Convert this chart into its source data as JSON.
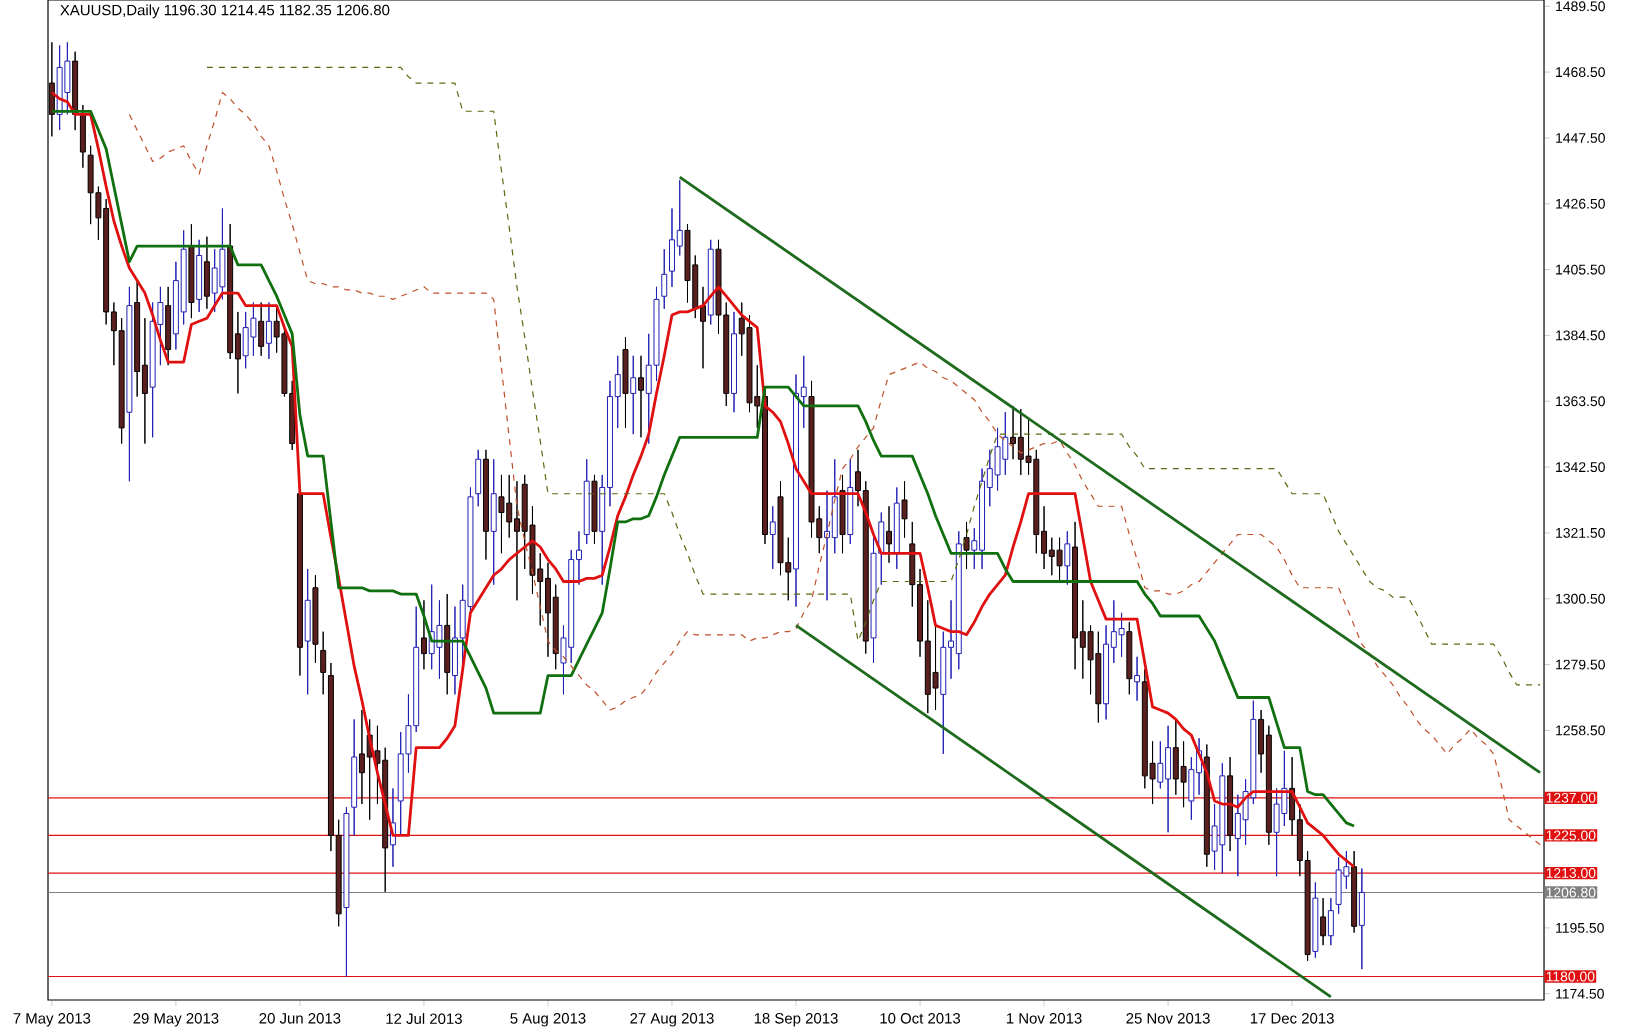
{
  "chart_data": {
    "type": "candlestick",
    "title": "XAUUSD,Daily  1196.30 1214.45 1182.35 1206.80",
    "categories": [
      "7 May 2013",
      null,
      null,
      null,
      null,
      null,
      null,
      null,
      null,
      null,
      null,
      null,
      null,
      null,
      null,
      null,
      "29 May 2013",
      null,
      null,
      null,
      null,
      null,
      null,
      null,
      null,
      null,
      null,
      null,
      null,
      null,
      null,
      null,
      "20 Jun 2013",
      null,
      null,
      null,
      null,
      null,
      null,
      null,
      null,
      null,
      null,
      null,
      null,
      null,
      null,
      null,
      "12 Jul 2013",
      null,
      null,
      null,
      null,
      null,
      null,
      null,
      null,
      null,
      null,
      null,
      null,
      null,
      null,
      null,
      "5 Aug 2013",
      null,
      null,
      null,
      null,
      null,
      null,
      null,
      null,
      null,
      null,
      null,
      null,
      null,
      null,
      null,
      "27 Aug 2013",
      null,
      null,
      null,
      null,
      null,
      null,
      null,
      null,
      null,
      null,
      null,
      null,
      null,
      null,
      null,
      "18 Sep 2013",
      null,
      null,
      null,
      null,
      null,
      null,
      null,
      null,
      null,
      null,
      null,
      null,
      null,
      null,
      null,
      "10 Oct 2013",
      null,
      null,
      null,
      null,
      null,
      null,
      null,
      null,
      null,
      null,
      null,
      null,
      null,
      null,
      null,
      "1 Nov 2013",
      null,
      null,
      null,
      null,
      null,
      null,
      null,
      null,
      null,
      null,
      null,
      null,
      null,
      null,
      null,
      "25 Nov 2013",
      null,
      null,
      null,
      null,
      null,
      null,
      null,
      null,
      null,
      null,
      null,
      null,
      null,
      null,
      null,
      "17 Dec 2013",
      null,
      null,
      null,
      null,
      null,
      null,
      null,
      null,
      null,
      null,
      null,
      null,
      null,
      null,
      null,
      null,
      null,
      null,
      null,
      null,
      null,
      null,
      null,
      null,
      null,
      null,
      null,
      null,
      null,
      null,
      null,
      null
    ],
    "ylim": [
      1172.5,
      1491.5
    ],
    "yticks": [
      {
        "value": 1174.5,
        "label": "1174.50"
      },
      {
        "value": 1195.5,
        "label": "1195.50"
      },
      {
        "value": 1237.5,
        "label": null
      },
      {
        "value": 1258.5,
        "label": "1258.50"
      },
      {
        "value": 1279.5,
        "label": "1279.50"
      },
      {
        "value": 1300.5,
        "label": "1300.50"
      },
      {
        "value": 1321.5,
        "label": "1321.50"
      },
      {
        "value": 1342.5,
        "label": "1342.50"
      },
      {
        "value": 1363.5,
        "label": "1363.50"
      },
      {
        "value": 1384.5,
        "label": "1384.50"
      },
      {
        "value": 1405.5,
        "label": "1405.50"
      },
      {
        "value": 1426.5,
        "label": "1426.50"
      },
      {
        "value": 1447.5,
        "label": "1447.50"
      },
      {
        "value": 1468.5,
        "label": "1468.50"
      },
      {
        "value": 1489.5,
        "label": "1489.50"
      }
    ],
    "colors": [
      "#5a1f1f",
      "#1f1fb4",
      "#1f1fb4",
      "#5a1f1f",
      "#5a1f1f",
      "#5a1f1f",
      "#5a1f1f",
      "#5a1f1f",
      "#5a1f1f",
      "#5a1f1f",
      "#1f1fb4",
      "#5a1f1f",
      "#5a1f1f",
      "#1f1fb4",
      "#1f1fb4",
      "#5a1f1f",
      "#1f1fb4",
      "#1f1fb4",
      "#5a1f1f",
      "#1f1fb4",
      "#5a1f1f",
      "#1f1fb4",
      "#1f1fb4",
      "#5a1f1f",
      "#5a1f1f",
      "#1f1fb4",
      "#1f1fb4",
      "#5a1f1f",
      "#1f1fb4",
      "#5a1f1f",
      "#5a1f1f",
      "#5a1f1f",
      "#5a1f1f",
      "#1f1fb4",
      "#5a1f1f",
      "#5a1f1f",
      "#5a1f1f",
      "#5a1f1f",
      "#1f1fb4",
      "#1f1fb4",
      "#5a1f1f",
      "#5a1f1f",
      "#5a1f1f",
      "#5a1f1f",
      "#1f1fb4",
      "#1f1fb4",
      "#1f1fb4",
      "#1f1fb4",
      "#5a1f1f",
      "#1f1fb4",
      "#1f1fb4",
      "#5a1f1f",
      "#1f1fb4",
      "#1f1fb4",
      "#1f1fb4",
      "#1f1fb4",
      "#5a1f1f",
      "#1f1fb4",
      "#5a1f1f",
      "#5a1f1f",
      "#5a1f1f",
      "#5a1f1f",
      "#5a1f1f",
      "#5a1f1f",
      "#5a1f1f",
      "#5a1f1f",
      "#1f1fb4",
      "#1f1fb4",
      "#1f1fb4",
      "#1f1fb4",
      "#5a1f1f",
      "#1f1fb4",
      "#1f1fb4",
      "#1f1fb4",
      "#5a1f1f",
      "#1f1fb4",
      "#5a1f1f",
      "#1f1fb4",
      "#1f1fb4",
      "#1f1fb4",
      "#1f1fb4",
      "#1f1fb4",
      "#5a1f1f",
      "#5a1f1f",
      "#5a1f1f",
      "#1f1fb4",
      "#5a1f1f",
      "#5a1f1f",
      "#1f1fb4",
      "#5a1f1f",
      "#5a1f1f",
      "#5a1f1f",
      "#5a1f1f",
      "#1f1fb4",
      "#5a1f1f",
      "#5a1f1f",
      "#1f1fb4",
      "#1f1fb4",
      "#5a1f1f",
      "#5a1f1f",
      "#1f1fb4",
      "#1f1fb4",
      "#5a1f1f",
      "#1f1fb4",
      "#5a1f1f",
      "#5a1f1f",
      "#1f1fb4",
      "#1f1fb4",
      "#5a1f1f",
      "#1f1fb4",
      "#5a1f1f",
      "#5a1f1f",
      "#5a1f1f",
      "#5a1f1f",
      "#5a1f1f",
      "#1f1fb4",
      "#1f1fb4",
      "#1f1fb4",
      "#5a1f1f",
      "#1f1fb4",
      "#1f1fb4",
      "#1f1fb4",
      "#1f1fb4",
      "#1f1fb4",
      "#5a1f1f",
      "#5a1f1f",
      "#5a1f1f",
      "#5a1f1f",
      "#5a1f1f",
      "#5a1f1f",
      "#5a1f1f",
      "#1f1fb4",
      "#5a1f1f",
      "#5a1f1f",
      "#5a1f1f",
      "#5a1f1f",
      "#1f1fb4",
      "#1f1fb4",
      "#1f1fb4",
      "#5a1f1f",
      "#1f1fb4",
      "#5a1f1f",
      "#5a1f1f",
      "#1f1fb4",
      "#1f1fb4",
      "#5a1f1f",
      "#5a1f1f",
      "#1f1fb4",
      "#1f1fb4",
      "#5a1f1f",
      "#1f1fb4",
      "#1f1fb4",
      "#5a1f1f",
      "#1f1fb4",
      "#1f1fb4",
      "#1f1fb4",
      "#5a1f1f",
      "#5a1f1f",
      "#1f1fb4",
      "#1f1fb4",
      "#5a1f1f",
      "#5a1f1f",
      "#5a1f1f",
      "#1f1fb4",
      "#5a1f1f",
      "#1f1fb4",
      "#1f1fb4",
      "#1f1fb4",
      "#5a1f1f",
      "#1f1fb4",
      null,
      null,
      null,
      null,
      null,
      null,
      null,
      null,
      null,
      null,
      null,
      null,
      null,
      null,
      null,
      null,
      null,
      null,
      null,
      null,
      null,
      null,
      null
    ],
    "ohlc": [
      [
        1465,
        1478,
        1448,
        1455
      ],
      [
        1455,
        1477,
        1450,
        1470
      ],
      [
        1462,
        1478,
        1455,
        1472
      ],
      [
        1472,
        1475,
        1450,
        1455
      ],
      [
        1455,
        1458,
        1438,
        1443
      ],
      [
        1442,
        1445,
        1420,
        1430
      ],
      [
        1430,
        1432,
        1415,
        1422
      ],
      [
        1425,
        1428,
        1388,
        1392
      ],
      [
        1392,
        1395,
        1375,
        1386
      ],
      [
        1386,
        1390,
        1350,
        1355
      ],
      [
        1360,
        1400,
        1338,
        1394
      ],
      [
        1395,
        1402,
        1365,
        1373
      ],
      [
        1375,
        1390,
        1350,
        1366
      ],
      [
        1368,
        1395,
        1352,
        1389
      ],
      [
        1388,
        1400,
        1375,
        1395
      ],
      [
        1394,
        1400,
        1375,
        1380
      ],
      [
        1385,
        1408,
        1380,
        1402
      ],
      [
        1392,
        1418,
        1388,
        1412
      ],
      [
        1413,
        1420,
        1390,
        1395
      ],
      [
        1396,
        1415,
        1392,
        1410
      ],
      [
        1408,
        1416,
        1393,
        1397
      ],
      [
        1398,
        1412,
        1392,
        1406
      ],
      [
        1400,
        1425,
        1396,
        1412
      ],
      [
        1413,
        1420,
        1377,
        1379
      ],
      [
        1385,
        1392,
        1366,
        1377
      ],
      [
        1378,
        1392,
        1374,
        1387
      ],
      [
        1384,
        1395,
        1378,
        1390
      ],
      [
        1389,
        1395,
        1378,
        1381
      ],
      [
        1382,
        1395,
        1377,
        1389
      ],
      [
        1389,
        1394,
        1379,
        1384
      ],
      [
        1385,
        1388,
        1365,
        1366
      ],
      [
        1366,
        1370,
        1348,
        1350
      ],
      [
        1334,
        1336,
        1276,
        1285
      ],
      [
        1287,
        1310,
        1270,
        1300
      ],
      [
        1304,
        1308,
        1280,
        1286
      ],
      [
        1284,
        1290,
        1270,
        1277
      ],
      [
        1276,
        1280,
        1220,
        1225
      ],
      [
        1225,
        1230,
        1196,
        1200
      ],
      [
        1202,
        1234,
        1180,
        1232
      ],
      [
        1234,
        1262,
        1225,
        1250
      ],
      [
        1251,
        1265,
        1235,
        1245
      ],
      [
        1257,
        1262,
        1230,
        1250
      ],
      [
        1252,
        1260,
        1235,
        1248
      ],
      [
        1249,
        1253,
        1207,
        1221
      ],
      [
        1222,
        1240,
        1215,
        1229
      ],
      [
        1236,
        1258,
        1225,
        1251
      ],
      [
        1251,
        1270,
        1245,
        1260
      ],
      [
        1260,
        1298,
        1258,
        1285
      ],
      [
        1288,
        1300,
        1278,
        1283
      ],
      [
        1283,
        1305,
        1278,
        1290
      ],
      [
        1285,
        1300,
        1275,
        1292
      ],
      [
        1292,
        1302,
        1270,
        1277
      ],
      [
        1276,
        1298,
        1270,
        1288
      ],
      [
        1288,
        1305,
        1278,
        1300
      ],
      [
        1298,
        1336,
        1295,
        1333
      ],
      [
        1334,
        1348,
        1330,
        1345
      ],
      [
        1345,
        1348,
        1313,
        1322
      ],
      [
        1322,
        1345,
        1305,
        1334
      ],
      [
        1333,
        1340,
        1315,
        1328
      ],
      [
        1331,
        1340,
        1320,
        1325
      ],
      [
        1326,
        1338,
        1300,
        1322
      ],
      [
        1337,
        1340,
        1310,
        1322
      ],
      [
        1324,
        1330,
        1302,
        1308
      ],
      [
        1310,
        1315,
        1292,
        1306
      ],
      [
        1307,
        1312,
        1282,
        1296
      ],
      [
        1301,
        1305,
        1278,
        1283
      ],
      [
        1280,
        1292,
        1270,
        1288
      ],
      [
        1285,
        1316,
        1280,
        1313
      ],
      [
        1313,
        1322,
        1305,
        1316
      ],
      [
        1321,
        1345,
        1318,
        1338
      ],
      [
        1338,
        1340,
        1318,
        1322
      ],
      [
        1322,
        1340,
        1305,
        1336
      ],
      [
        1336,
        1370,
        1330,
        1365
      ],
      [
        1365,
        1378,
        1355,
        1372
      ],
      [
        1380,
        1384,
        1355,
        1366
      ],
      [
        1366,
        1378,
        1353,
        1371
      ],
      [
        1371,
        1378,
        1352,
        1367
      ],
      [
        1366,
        1385,
        1350,
        1375
      ],
      [
        1375,
        1400,
        1370,
        1396
      ],
      [
        1397,
        1412,
        1393,
        1404
      ],
      [
        1405,
        1425,
        1400,
        1415
      ],
      [
        1413,
        1434,
        1410,
        1418
      ],
      [
        1418,
        1420,
        1395,
        1402
      ],
      [
        1407,
        1410,
        1390,
        1393
      ],
      [
        1394,
        1400,
        1374,
        1389
      ],
      [
        1391,
        1415,
        1388,
        1412
      ],
      [
        1412,
        1415,
        1385,
        1391
      ],
      [
        1391,
        1395,
        1362,
        1366
      ],
      [
        1366,
        1392,
        1360,
        1385
      ],
      [
        1390,
        1395,
        1378,
        1385
      ],
      [
        1387,
        1391,
        1360,
        1363
      ],
      [
        1365,
        1375,
        1355,
        1362
      ],
      [
        1365,
        1368,
        1318,
        1321
      ],
      [
        1321,
        1330,
        1310,
        1325
      ],
      [
        1333,
        1338,
        1308,
        1312
      ],
      [
        1312,
        1320,
        1300,
        1309
      ],
      [
        1310,
        1372,
        1298,
        1366
      ],
      [
        1365,
        1378,
        1355,
        1368
      ],
      [
        1365,
        1370,
        1320,
        1325
      ],
      [
        1326,
        1330,
        1315,
        1320
      ],
      [
        1320,
        1335,
        1300,
        1322
      ],
      [
        1320,
        1345,
        1315,
        1333
      ],
      [
        1335,
        1340,
        1315,
        1321
      ],
      [
        1321,
        1345,
        1318,
        1336
      ],
      [
        1341,
        1348,
        1330,
        1335
      ],
      [
        1335,
        1338,
        1283,
        1287
      ],
      [
        1288,
        1320,
        1280,
        1315
      ],
      [
        1315,
        1328,
        1305,
        1325
      ],
      [
        1322,
        1330,
        1312,
        1318
      ],
      [
        1315,
        1336,
        1310,
        1331
      ],
      [
        1332,
        1338,
        1320,
        1326
      ],
      [
        1318,
        1325,
        1298,
        1305
      ],
      [
        1305,
        1310,
        1282,
        1287
      ],
      [
        1287,
        1300,
        1264,
        1270
      ],
      [
        1277,
        1292,
        1265,
        1272
      ],
      [
        1270,
        1290,
        1251,
        1285
      ],
      [
        1285,
        1300,
        1275,
        1287
      ],
      [
        1283,
        1322,
        1278,
        1318
      ],
      [
        1320,
        1325,
        1310,
        1316
      ],
      [
        1316,
        1323,
        1310,
        1319
      ],
      [
        1316,
        1342,
        1310,
        1338
      ],
      [
        1336,
        1348,
        1330,
        1342
      ],
      [
        1340,
        1355,
        1335,
        1349
      ],
      [
        1345,
        1360,
        1340,
        1352
      ],
      [
        1352,
        1362,
        1345,
        1350
      ],
      [
        1352,
        1361,
        1340,
        1345
      ],
      [
        1346,
        1358,
        1340,
        1344
      ],
      [
        1345,
        1348,
        1315,
        1321
      ],
      [
        1322,
        1330,
        1310,
        1315
      ],
      [
        1316,
        1320,
        1308,
        1314
      ],
      [
        1316,
        1320,
        1306,
        1311
      ],
      [
        1311,
        1322,
        1305,
        1318
      ],
      [
        1317,
        1325,
        1278,
        1288
      ],
      [
        1290,
        1300,
        1275,
        1285
      ],
      [
        1290,
        1292,
        1270,
        1281
      ],
      [
        1283,
        1290,
        1261,
        1267
      ],
      [
        1267,
        1292,
        1262,
        1286
      ],
      [
        1285,
        1300,
        1280,
        1290
      ],
      [
        1289,
        1296,
        1282,
        1291
      ],
      [
        1290,
        1293,
        1270,
        1275
      ],
      [
        1274,
        1282,
        1268,
        1276
      ],
      [
        1274,
        1278,
        1240,
        1244
      ],
      [
        1248,
        1255,
        1235,
        1243
      ],
      [
        1242,
        1255,
        1240,
        1248
      ],
      [
        1243,
        1260,
        1226,
        1253
      ],
      [
        1253,
        1262,
        1238,
        1243
      ],
      [
        1247,
        1255,
        1234,
        1242
      ],
      [
        1236,
        1250,
        1230,
        1246
      ],
      [
        1245,
        1256,
        1238,
        1252
      ],
      [
        1250,
        1254,
        1215,
        1219
      ],
      [
        1220,
        1235,
        1214,
        1228
      ],
      [
        1222,
        1248,
        1213,
        1244
      ],
      [
        1244,
        1250,
        1220,
        1225
      ],
      [
        1224,
        1238,
        1212,
        1232
      ],
      [
        1230,
        1243,
        1222,
        1239
      ],
      [
        1237,
        1268,
        1235,
        1262
      ],
      [
        1262,
        1265,
        1245,
        1251
      ],
      [
        1257,
        1260,
        1222,
        1226
      ],
      [
        1226,
        1240,
        1212,
        1235
      ],
      [
        1232,
        1252,
        1228,
        1240
      ],
      [
        1240,
        1250,
        1225,
        1230
      ],
      [
        1230,
        1235,
        1212,
        1217
      ],
      [
        1217,
        1220,
        1185,
        1187
      ],
      [
        1188,
        1210,
        1186,
        1205
      ],
      [
        1199,
        1205,
        1190,
        1193
      ],
      [
        1193,
        1205,
        1190,
        1201
      ],
      [
        1203,
        1218,
        1200,
        1214
      ],
      [
        1212,
        1220,
        1208,
        1215
      ],
      [
        1215,
        1220,
        1194,
        1196
      ],
      [
        1196.3,
        1214.45,
        1182.35,
        1206.8
      ],
      null,
      null,
      null,
      null,
      null,
      null,
      null,
      null,
      null,
      null,
      null,
      null,
      null,
      null,
      null,
      null,
      null,
      null,
      null,
      null,
      null,
      null,
      null
    ],
    "series": [
      {
        "type": "line",
        "color": "#e01010",
        "values": [
          1462,
          1460,
          1459,
          1455,
          1455,
          1455,
          1444,
          1432,
          1421,
          1413,
          1406,
          1402,
          1398,
          1391,
          1383,
          1376,
          1376,
          1376,
          1388,
          1389,
          1390,
          1394,
          1398,
          1398,
          1398,
          1394,
          1394,
          1394,
          1394,
          1394,
          1387,
          1381,
          1334,
          1334,
          1334,
          1334,
          1320,
          1307,
          1293,
          1279,
          1268,
          1256,
          1245,
          1235,
          1225,
          1225,
          1225,
          1253,
          1253,
          1253,
          1253,
          1256,
          1260,
          1278,
          1296,
          1300,
          1304,
          1308,
          1310,
          1313,
          1315,
          1317,
          1319,
          1317,
          1313,
          1310,
          1306,
          1306,
          1306,
          1307,
          1307,
          1308,
          1317,
          1327,
          1333,
          1340,
          1346,
          1353,
          1366,
          1378,
          1391,
          1392,
          1392,
          1393,
          1394,
          1397,
          1400,
          1397,
          1394,
          1391,
          1389,
          1387,
          1362,
          1360,
          1357,
          1350,
          1342,
          1338,
          1334,
          1334,
          1334,
          1334,
          1334,
          1334,
          1334,
          1328,
          1321,
          1315,
          1315,
          1315,
          1315,
          1315,
          1315,
          1304,
          1292,
          1291,
          1290,
          1290,
          1289,
          1293,
          1298,
          1302,
          1305,
          1308,
          1317,
          1325,
          1334,
          1334,
          1334,
          1334,
          1334,
          1334,
          1334,
          1320,
          1306,
          1300,
          1294,
          1294,
          1294,
          1294,
          1294,
          1280,
          1266,
          1265,
          1264,
          1262,
          1259,
          1257,
          1251,
          1245,
          1236,
          1235,
          1235,
          1234,
          1237,
          1239,
          1239,
          1239,
          1239,
          1239,
          1239,
          1234,
          1229,
          1227,
          1225,
          1222,
          1219,
          1217,
          1215,
          null,
          null,
          null,
          null,
          null,
          null,
          null,
          null,
          null,
          null,
          null,
          null,
          null,
          null,
          null,
          null,
          null,
          null,
          null,
          null,
          null,
          null,
          null,
          null
        ]
      },
      {
        "type": "line",
        "color": "#107010",
        "values": [
          1456,
          1456,
          1456,
          1456,
          1456,
          1456,
          1450,
          1444,
          1432,
          1420,
          1408,
          1413,
          1413,
          1413,
          1413,
          1413,
          1413,
          1413,
          1413,
          1413,
          1413,
          1413,
          1413,
          1413,
          1407,
          1407,
          1407,
          1407,
          1402,
          1397,
          1391,
          1385,
          1359,
          1346,
          1346,
          1346,
          1325,
          1304,
          1304,
          1304,
          1304,
          1303,
          1303,
          1303,
          1303,
          1302,
          1302,
          1302,
          1295,
          1287,
          1287,
          1287,
          1287,
          1287,
          1282,
          1277,
          1272,
          1264,
          1264,
          1264,
          1264,
          1264,
          1264,
          1264,
          1276,
          1276,
          1276,
          1276,
          1281,
          1286,
          1291,
          1296,
          1310,
          1325,
          1325,
          1326,
          1326,
          1327,
          1333,
          1340,
          1346,
          1352,
          1352,
          1352,
          1352,
          1352,
          1352,
          1352,
          1352,
          1352,
          1352,
          1352,
          1368,
          1368,
          1368,
          1368,
          1365,
          1362,
          1362,
          1362,
          1362,
          1362,
          1362,
          1362,
          1362,
          1357,
          1351,
          1346,
          1346,
          1346,
          1346,
          1346,
          1340,
          1334,
          1327,
          1321,
          1315,
          1315,
          1315,
          1315,
          1315,
          1315,
          1315,
          1310,
          1306,
          1306,
          1306,
          1306,
          1306,
          1306,
          1306,
          1306,
          1306,
          1306,
          1306,
          1306,
          1306,
          1306,
          1306,
          1306,
          1306,
          1302,
          1299,
          1295,
          1295,
          1295,
          1295,
          1295,
          1295,
          1291,
          1287,
          1281,
          1275,
          1269,
          1269,
          1269,
          1269,
          1269,
          1261,
          1253,
          1253,
          1253,
          1239,
          1238,
          1238,
          1235,
          1232,
          1229,
          1228,
          null,
          null,
          null,
          null,
          null,
          null,
          null,
          null,
          null,
          null,
          null,
          null,
          null,
          null,
          null,
          null,
          null,
          null,
          null,
          null,
          null,
          null,
          null,
          null
        ]
      },
      {
        "type": "line",
        "color": "#c0502a",
        "line_style": "dashed",
        "values": [
          null,
          null,
          null,
          null,
          null,
          null,
          null,
          null,
          null,
          null,
          1455,
          1450,
          1445,
          1440,
          1441,
          1443,
          1444,
          1445,
          1440,
          1436,
          1445,
          1453,
          1462,
          1460,
          1457,
          1455,
          1452,
          1448,
          1445,
          1437,
          1428,
          1420,
          1411,
          1402,
          1401,
          1401,
          1400,
          1400,
          1399,
          1399,
          1398,
          1398,
          1397,
          1397,
          1396,
          1397,
          1398,
          1399,
          1400,
          1398,
          1398,
          1398,
          1398,
          1398,
          1398,
          1398,
          1398,
          1396,
          1374,
          1352,
          1330,
          1319,
          1309,
          1298,
          1287,
          1284,
          1282,
          1279,
          1276,
          1273,
          1271,
          1268,
          1265,
          1266,
          1268,
          1269,
          1270,
          1273,
          1277,
          1280,
          1283,
          1287,
          1290,
          1289,
          1289,
          1289,
          1289,
          1289,
          1289,
          1289,
          1287,
          1288,
          1288,
          1289,
          1290,
          1290,
          1291,
          1296,
          1300,
          1311,
          1321,
          1332,
          1342,
          1345,
          1349,
          1352,
          1355,
          1364,
          1372,
          1373,
          1374,
          1375,
          1376,
          1374,
          1373,
          1371,
          1370,
          1368,
          1366,
          1364,
          1360,
          1357,
          1353,
          1351,
          1349,
          1347,
          1348,
          1349,
          1350,
          1350,
          1351,
          1347,
          1343,
          1338,
          1334,
          1330,
          1330,
          1330,
          1330,
          1321,
          1313,
          1304,
          1303,
          1303,
          1302,
          1302,
          1303,
          1305,
          1306,
          1309,
          1312,
          1315,
          1318,
          1321,
          1321,
          1321,
          1321,
          1319,
          1317,
          1313,
          1308,
          1304,
          1304,
          1304,
          1304,
          1304,
          1304,
          1298,
          1292,
          1286,
          1283,
          1279,
          1276,
          1273,
          1269,
          1266,
          1262,
          1259,
          1257,
          1254,
          1251,
          1254,
          1256,
          1259,
          1256,
          1254,
          1251,
          1241,
          1230,
          1228,
          1226,
          1224,
          1222
        ]
      },
      {
        "type": "line",
        "color": "#5a6a10",
        "line_style": "dashed",
        "values": [
          null,
          null,
          null,
          null,
          null,
          null,
          null,
          null,
          null,
          null,
          null,
          null,
          null,
          null,
          null,
          null,
          null,
          null,
          null,
          null,
          1470,
          1470,
          1470,
          1470,
          1470,
          1470,
          1470,
          1470,
          1470,
          1470,
          1470,
          1470,
          1470,
          1470,
          1470,
          1470,
          1470,
          1470,
          1470,
          1470,
          1470,
          1470,
          1470,
          1470,
          1470,
          1470,
          1467,
          1465,
          1465,
          1465,
          1465,
          1465,
          1465,
          1456,
          1456,
          1456,
          1456,
          1456,
          1437,
          1419,
          1400,
          1384,
          1367,
          1351,
          1334,
          1334,
          1334,
          1334,
          1334,
          1334,
          1334,
          1334,
          1334,
          1334,
          1334,
          1334,
          1334,
          1334,
          1334,
          1334,
          1328,
          1321,
          1315,
          1308,
          1302,
          1302,
          1302,
          1302,
          1302,
          1302,
          1302,
          1302,
          1302,
          1302,
          1302,
          1302,
          1302,
          1302,
          1302,
          1302,
          1302,
          1302,
          1302,
          1302,
          1287,
          1293,
          1300,
          1306,
          1306,
          1306,
          1306,
          1306,
          1306,
          1306,
          1306,
          1306,
          1306,
          1313,
          1321,
          1330,
          1338,
          1346,
          1353,
          1353,
          1353,
          1353,
          1353,
          1353,
          1353,
          1353,
          1353,
          1353,
          1353,
          1353,
          1353,
          1353,
          1353,
          1353,
          1353,
          1349,
          1346,
          1342,
          1342,
          1342,
          1342,
          1342,
          1342,
          1342,
          1342,
          1342,
          1342,
          1342,
          1342,
          1342,
          1342,
          1342,
          1342,
          1342,
          1342,
          1338,
          1334,
          1334,
          1334,
          1334,
          1334,
          1328,
          1322,
          1318,
          1314,
          1310,
          1306,
          1304,
          1303,
          1301,
          1301,
          1301,
          1296,
          1291,
          1286,
          1286,
          1286,
          1286,
          1286,
          1286,
          1286,
          1286,
          1286,
          1282,
          1277,
          1273,
          1273,
          1273,
          1273
        ]
      },
      {
        "type": "line",
        "color": "#1e6b1e",
        "values": [
          null,
          null,
          null,
          null,
          null,
          null,
          null,
          null,
          null,
          null,
          null,
          null,
          null,
          null,
          null,
          null,
          null,
          null,
          null,
          null,
          null,
          null,
          null,
          null,
          null,
          null,
          null,
          null,
          null,
          null,
          null,
          null,
          null,
          null,
          null,
          null,
          null,
          null,
          null,
          null,
          null,
          null,
          null,
          null,
          null,
          null,
          null,
          null,
          null,
          null,
          null,
          null,
          null,
          null,
          null,
          null,
          null,
          null,
          null,
          null,
          null,
          null,
          null,
          null,
          null,
          null,
          null,
          null,
          null,
          null,
          null,
          null,
          null,
          null,
          null,
          null,
          null,
          null,
          null,
          null,
          null,
          1435,
          null,
          null,
          null,
          null,
          null,
          null,
          null,
          null,
          null,
          null,
          null,
          null,
          null,
          null,
          null,
          null,
          null,
          null,
          null,
          null,
          null,
          null,
          null,
          null,
          null,
          null,
          null,
          null,
          null,
          null,
          null,
          null,
          null,
          null,
          null,
          null,
          null,
          null,
          null,
          null,
          null,
          null,
          null,
          null,
          null,
          null,
          null,
          null,
          null,
          null,
          null,
          null,
          null,
          null,
          null,
          null,
          null,
          null,
          null,
          null,
          null,
          null,
          null,
          null,
          null,
          null,
          null,
          null,
          null,
          null,
          null,
          null,
          null,
          null,
          null,
          null,
          null,
          null,
          null,
          null,
          null,
          null,
          null,
          null,
          null,
          null,
          null,
          null,
          null,
          null,
          null,
          null,
          null,
          null,
          null,
          null,
          null,
          null,
          null,
          null,
          null,
          null,
          null,
          null,
          null,
          null,
          null,
          null,
          null,
          null,
          1245
        ]
      },
      {
        "type": "line",
        "color": "#1e6b1e",
        "values": [
          null,
          null,
          null,
          null,
          null,
          null,
          null,
          null,
          null,
          null,
          null,
          null,
          null,
          null,
          null,
          null,
          null,
          null,
          null,
          null,
          null,
          null,
          null,
          null,
          null,
          null,
          null,
          null,
          null,
          null,
          null,
          null,
          null,
          null,
          null,
          null,
          null,
          null,
          null,
          null,
          null,
          null,
          null,
          null,
          null,
          null,
          null,
          null,
          null,
          null,
          null,
          null,
          null,
          null,
          null,
          null,
          null,
          null,
          null,
          null,
          null,
          null,
          null,
          null,
          null,
          null,
          null,
          null,
          null,
          null,
          null,
          null,
          null,
          null,
          null,
          null,
          null,
          null,
          null,
          null,
          null,
          null,
          null,
          null,
          null,
          null,
          null,
          null,
          null,
          null,
          null,
          null,
          null,
          null,
          null,
          null,
          1292,
          null,
          null,
          null,
          null,
          null,
          null,
          null,
          null,
          null,
          null,
          null,
          null,
          null,
          null,
          null,
          null,
          null,
          null,
          null,
          null,
          null,
          null,
          null,
          null,
          null,
          null,
          null,
          null,
          null,
          null,
          null,
          null,
          null,
          null,
          null,
          null,
          null,
          null,
          null,
          null,
          null,
          null,
          null,
          null,
          null,
          null,
          null,
          null,
          null,
          null,
          null,
          null,
          null,
          null,
          null,
          null,
          null,
          null,
          null,
          null,
          null,
          null,
          null,
          null,
          null,
          null,
          null,
          null,
          1173.5,
          null,
          null,
          null,
          null,
          null,
          null,
          null,
          null,
          null,
          null,
          null,
          null,
          null,
          null,
          null,
          null,
          null,
          null,
          null,
          null,
          null,
          null,
          null,
          null,
          null,
          null,
          null
        ]
      }
    ],
    "ref_lines": [
      {
        "axis": "y",
        "value": 1237,
        "label": "1237.00",
        "color": "#e01010"
      },
      {
        "axis": "y",
        "value": 1225,
        "label": "1225.00",
        "color": "#e01010"
      },
      {
        "axis": "y",
        "value": 1213,
        "label": "1213.00",
        "color": "#e01010"
      },
      {
        "axis": "y",
        "value": 1206.8,
        "label": "1206.80",
        "color": "#808080"
      },
      {
        "axis": "y",
        "value": 1180,
        "label": "1180.00",
        "color": "#e01010"
      }
    ]
  }
}
